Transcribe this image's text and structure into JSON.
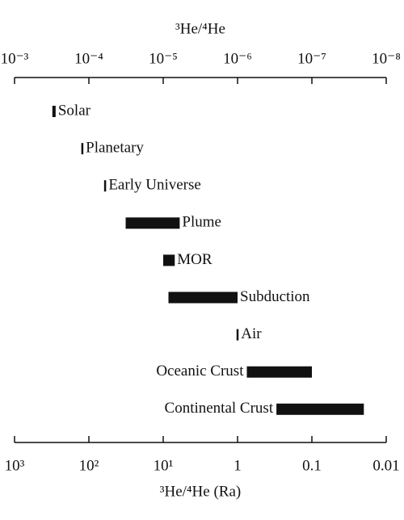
{
  "chart_data": {
    "type": "range_bar",
    "title": "³He/⁴He",
    "x_label": "³He/⁴He (Ra)",
    "categories": [
      "Solar",
      "Planetary",
      "Early Universe",
      "Plume",
      "MOR",
      "Subduction",
      "Air",
      "Oceanic Crust",
      "Continental Crust"
    ],
    "ranges": [
      [
        280,
        310
      ],
      [
        120,
        125
      ],
      [
        59,
        62
      ],
      [
        6,
        32
      ],
      [
        7,
        10
      ],
      [
        1,
        8.5
      ],
      [
        0.98,
        1.02
      ],
      [
        0.1,
        0.75
      ],
      [
        0.02,
        0.3
      ]
    ],
    "color": "#111111",
    "x_scale": "log",
    "xlim": [
      1000,
      0.01
    ],
    "xticks": [
      {
        "value": 1000,
        "label": "10³"
      },
      {
        "value": 100,
        "label": "10²"
      },
      {
        "value": 10,
        "label": "10¹"
      },
      1,
      0.1,
      0.01
    ],
    "x2lim": [
      0.001,
      1e-08
    ],
    "x2ticks": [
      {
        "value": 0.001,
        "label": "10⁻³"
      },
      {
        "value": 0.0001,
        "label": "10⁻⁴"
      },
      {
        "value": 1e-05,
        "label": "10⁻⁵"
      },
      {
        "value": 1e-06,
        "label": "10⁻⁶"
      },
      {
        "value": 1e-07,
        "label": "10⁻⁷"
      },
      {
        "value": 1e-08,
        "label": "10⁻⁸"
      }
    ]
  }
}
